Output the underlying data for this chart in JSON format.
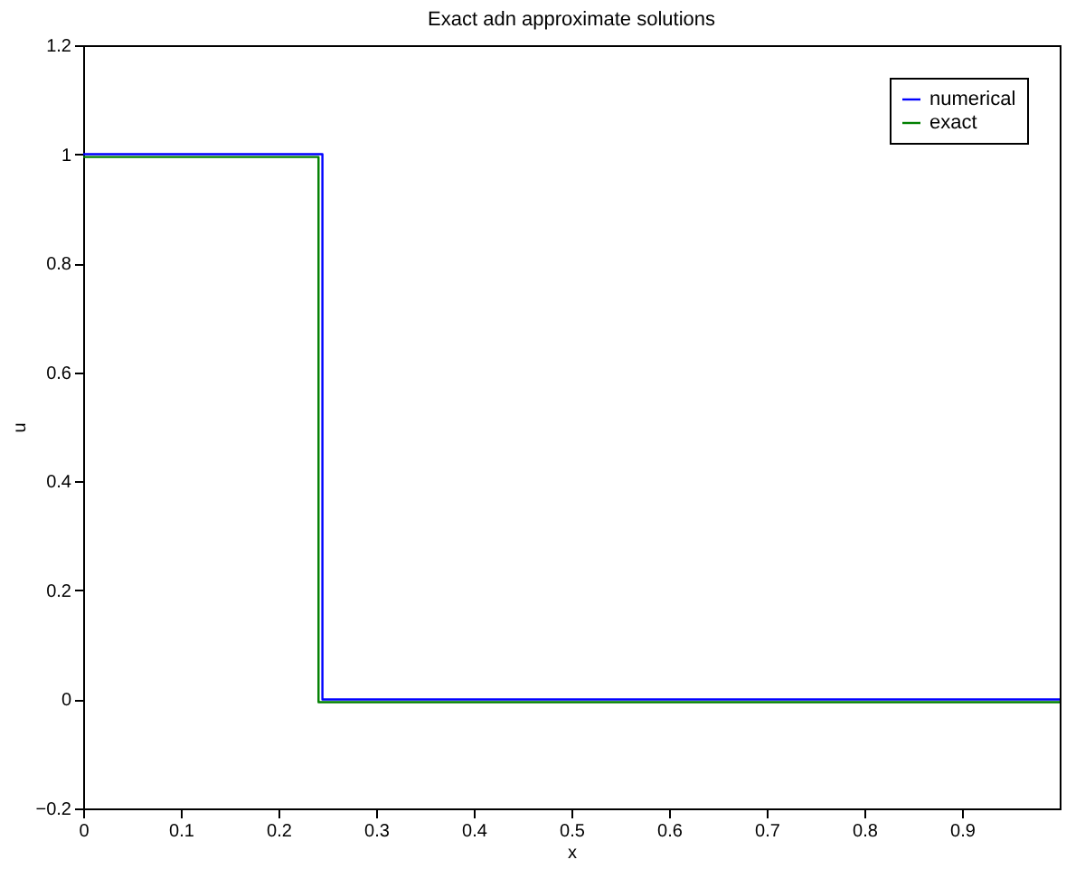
{
  "chart_data": {
    "type": "line",
    "title": "Exact adn approximate solutions",
    "xlabel": "x",
    "ylabel": "u",
    "xlim": [
      0,
      1
    ],
    "ylim": [
      -0.2,
      1.2
    ],
    "xticks": [
      0,
      0.1,
      0.2,
      0.3,
      0.4,
      0.5,
      0.6,
      0.7,
      0.8,
      0.9
    ],
    "yticks": [
      -0.2,
      0,
      0.2,
      0.4,
      0.6,
      0.8,
      1,
      1.2
    ],
    "series": [
      {
        "name": "numerical",
        "color": "#0000ff",
        "x": [
          0,
          0.245,
          0.245,
          1
        ],
        "values": [
          1,
          1,
          0,
          0
        ]
      },
      {
        "name": "exact",
        "color": "#008000",
        "x": [
          0,
          0.241,
          0.241,
          1
        ],
        "values": [
          0.995,
          0.995,
          -0.005,
          -0.005
        ]
      }
    ],
    "legend": "top right",
    "grid": false,
    "marker": "none",
    "line_style": "solid"
  }
}
